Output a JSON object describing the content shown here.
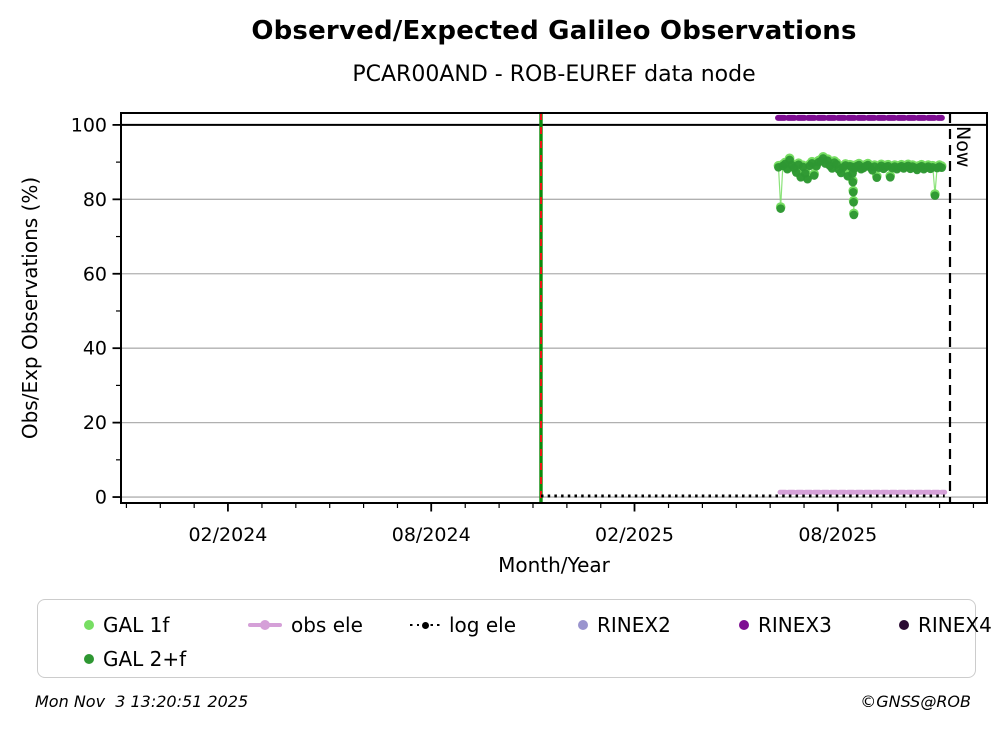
{
  "chart_data": {
    "type": "scatter",
    "title": "Observed/Expected Galileo Observations",
    "subtitle": "PCAR00AND - ROB-EUREF data node",
    "xlabel": "Month/Year",
    "ylabel": "Obs/Exp Observations (%)",
    "xlim_decimal_year": [
      2023.82,
      2025.95
    ],
    "ylim": [
      -1.6,
      103.2
    ],
    "grid": "horizontal-gray",
    "x_ticks": [
      {
        "label": "02/2024",
        "value": 2024.083
      },
      {
        "label": "08/2024",
        "value": 2024.583
      },
      {
        "label": "02/2025",
        "value": 2025.083
      },
      {
        "label": "08/2025",
        "value": 2025.583
      }
    ],
    "x_minor_ticks": "monthly",
    "y_ticks": [
      0,
      20,
      40,
      60,
      80,
      100
    ],
    "y_minor_ticks": [
      10,
      30,
      50,
      70,
      90
    ],
    "series": [
      {
        "name": "GAL 2+f",
        "type": "scatter-with-thin-line",
        "color_key": "gal_2f",
        "unit": "percent",
        "points": [
          [
            2025.437,
            88.6
          ],
          [
            2025.4425,
            77.5
          ],
          [
            2025.448,
            89.0
          ],
          [
            2025.4535,
            89.5
          ],
          [
            2025.459,
            88.1
          ],
          [
            2025.4645,
            90.6
          ],
          [
            2025.47,
            89.2
          ],
          [
            2025.4755,
            88.4
          ],
          [
            2025.481,
            87.2
          ],
          [
            2025.4865,
            89.3
          ],
          [
            2025.492,
            85.9
          ],
          [
            2025.4975,
            88.7
          ],
          [
            2025.503,
            87.0
          ],
          [
            2025.5085,
            85.4
          ],
          [
            2025.514,
            89.0
          ],
          [
            2025.5195,
            89.7
          ],
          [
            2025.525,
            86.4
          ],
          [
            2025.5305,
            88.9
          ],
          [
            2025.536,
            90.0
          ],
          [
            2025.5415,
            90.3
          ],
          [
            2025.547,
            91.0
          ],
          [
            2025.5525,
            89.6
          ],
          [
            2025.558,
            90.4
          ],
          [
            2025.5635,
            89.0
          ],
          [
            2025.569,
            88.3
          ],
          [
            2025.5745,
            89.9
          ],
          [
            2025.58,
            89.4
          ],
          [
            2025.5855,
            88.0
          ],
          [
            2025.591,
            87.1
          ],
          [
            2025.5965,
            88.6
          ],
          [
            2025.602,
            89.1
          ],
          [
            2025.6075,
            86.2
          ],
          [
            2025.613,
            88.9
          ],
          [
            2025.6185,
            88.7
          ],
          [
            2025.619,
            86.9
          ],
          [
            2025.6201,
            84.6
          ],
          [
            2025.621,
            81.9
          ],
          [
            2025.6218,
            79.2
          ],
          [
            2025.6225,
            75.8
          ],
          [
            2025.624,
            88.3
          ],
          [
            2025.6295,
            88.9
          ],
          [
            2025.635,
            89.2
          ],
          [
            2025.6405,
            88.1
          ],
          [
            2025.646,
            88.4
          ],
          [
            2025.6515,
            88.9
          ],
          [
            2025.657,
            89.2
          ],
          [
            2025.6625,
            88.6
          ],
          [
            2025.668,
            87.8
          ],
          [
            2025.6735,
            88.8
          ],
          [
            2025.679,
            85.8
          ],
          [
            2025.6845,
            88.5
          ],
          [
            2025.69,
            89.0
          ],
          [
            2025.6955,
            88.2
          ],
          [
            2025.701,
            88.7
          ],
          [
            2025.7065,
            88.9
          ],
          [
            2025.712,
            85.9
          ],
          [
            2025.7175,
            88.4
          ],
          [
            2025.723,
            88.8
          ],
          [
            2025.7285,
            88.1
          ],
          [
            2025.734,
            88.6
          ],
          [
            2025.7395,
            88.9
          ],
          [
            2025.745,
            88.3
          ],
          [
            2025.7505,
            88.7
          ],
          [
            2025.756,
            89.0
          ],
          [
            2025.7615,
            88.2
          ],
          [
            2025.767,
            88.8
          ],
          [
            2025.7725,
            88.5
          ],
          [
            2025.778,
            87.9
          ],
          [
            2025.7835,
            88.6
          ],
          [
            2025.789,
            88.9
          ],
          [
            2025.7945,
            88.1
          ],
          [
            2025.8,
            88.5
          ],
          [
            2025.8055,
            88.8
          ],
          [
            2025.811,
            88.2
          ],
          [
            2025.8165,
            88.6
          ],
          [
            2025.822,
            81.0
          ],
          [
            2025.8275,
            88.4
          ],
          [
            2025.833,
            88.8
          ],
          [
            2025.8385,
            88.5
          ]
        ]
      },
      {
        "name": "GAL 1f",
        "type": "scatter-with-thin-line",
        "color_key": "gal_1f",
        "note": "markers coincide with GAL 2+f points (drawn behind, slight fringe visible)",
        "offset_from_gal_2f": 0.43
      },
      {
        "name": "obs ele",
        "type": "thick-dotted-hline",
        "color_key": "obs_ele",
        "y": 1.3,
        "x_start": 2025.441,
        "x_end": 2025.846
      },
      {
        "name": "log ele",
        "type": "dotted-hline",
        "color_key": "log_ele",
        "y": 0.3,
        "x_start": 2024.853,
        "x_end": 2025.846
      },
      {
        "name": "RINEX2",
        "type": "thick-dotted-hline",
        "color_key": "rinex2",
        "points": []
      },
      {
        "name": "RINEX3",
        "type": "thick-dotted-hline",
        "color_key": "rinex3",
        "y": 101.9,
        "x_start": 2025.436,
        "x_end": 2025.839
      },
      {
        "name": "RINEX4",
        "type": "thick-dotted-hline",
        "color_key": "rinex4",
        "points": []
      }
    ],
    "annotations": {
      "hundred_percent_line": {
        "y": 100
      },
      "event_line": {
        "x": 2024.853,
        "style": "green solid with red dashes, full height"
      },
      "now_line": {
        "x": 2025.859,
        "label": "Now",
        "style": "black dashed, full height"
      }
    },
    "legend_position": "below-chart"
  },
  "legend": {
    "items": [
      {
        "label": "GAL 1f",
        "marker": "dot"
      },
      {
        "label": "obs ele",
        "marker": "line-with-dot"
      },
      {
        "label": "log ele",
        "marker": "dotted-line-with-dot"
      },
      {
        "label": "RINEX2",
        "marker": "dot"
      },
      {
        "label": "RINEX3",
        "marker": "dot"
      },
      {
        "label": "RINEX4",
        "marker": "dot"
      },
      {
        "label": "GAL 2+f",
        "marker": "dot"
      }
    ]
  },
  "footer": {
    "timestamp": "Mon Nov  3 13:20:51 2025",
    "copyright": "©GNSS@ROB"
  },
  "colors": {
    "gal_1f": "#77DE63",
    "gal_2f": "#2E9732",
    "obs_ele": "#D5A0D8",
    "log_ele": "#000000",
    "rinex2": "#9A94CE",
    "rinex3": "#7E0D92",
    "rinex4": "#2A0A33",
    "grid": "#B0B0B0",
    "axis": "#000000",
    "event_green": "#0B8A0B",
    "event_red": "#EE1414",
    "now_line": "#000000"
  }
}
